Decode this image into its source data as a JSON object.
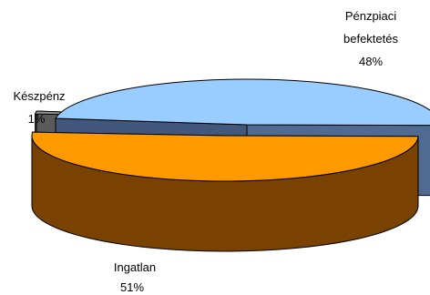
{
  "chart_data": {
    "type": "pie",
    "style": "3d-exploded",
    "title": "",
    "legend": "none",
    "slices": [
      {
        "label": "Pénzpiaci befektetés",
        "label_lines": [
          "Pénzpiaci",
          "befektetés"
        ],
        "value": 48,
        "value_text": "48%",
        "color_top": "#99ccff",
        "color_side": "#41587c",
        "color_rim": "#516a92"
      },
      {
        "label": "Ingatlan",
        "label_lines": [
          "Ingatlan"
        ],
        "value": 51,
        "value_text": "51%",
        "color_top": "#ff9900",
        "color_side": "#7a4200",
        "color_rim": "#8b4f08"
      },
      {
        "label": "Készpénz",
        "label_lines": [
          "Készpénz"
        ],
        "value": 1,
        "value_text": "1%",
        "color_top": "#969696",
        "color_side": "#5a5a5a",
        "color_rim": "#5a5a5a"
      }
    ]
  }
}
